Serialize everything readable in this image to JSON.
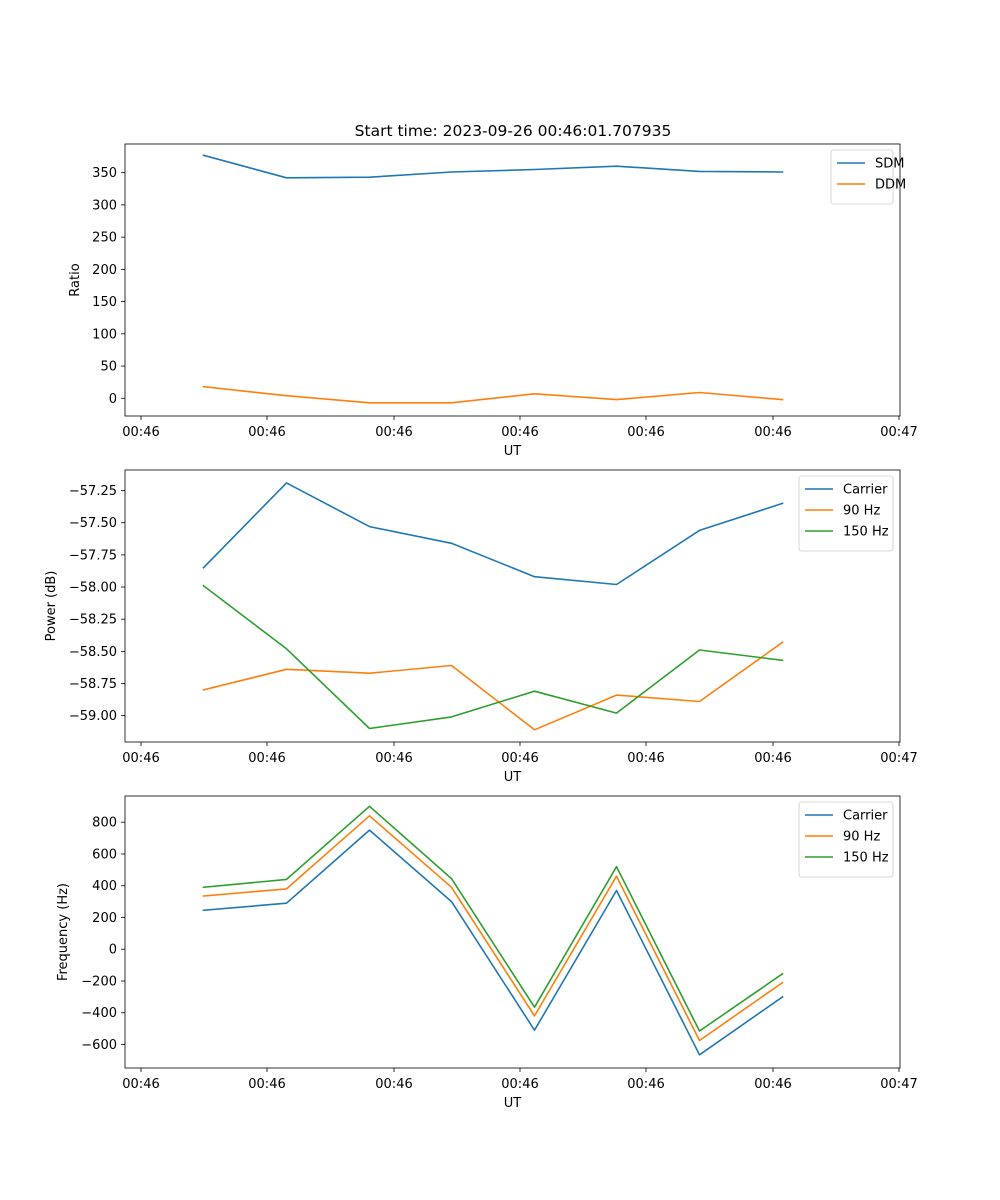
{
  "figure": {
    "title": "Start time: 2023-09-26 00:46:01.707935"
  },
  "chart_data": [
    {
      "type": "line",
      "title": "Start time: 2023-09-26 00:46:01.707935",
      "xlabel": "UT",
      "ylabel": "Ratio",
      "x_tick_labels": [
        "00:46",
        "00:46",
        "00:46",
        "00:46",
        "00:46",
        "00:46",
        "00:46",
        "00:47"
      ],
      "ylim": [
        -27.5,
        394.5
      ],
      "yticks": [
        0,
        50,
        100,
        150,
        200,
        250,
        300,
        350
      ],
      "legend": "top-right",
      "series": [
        {
          "name": "SDM",
          "color": "#1f77b4",
          "values": [
            377,
            342,
            343,
            351,
            355,
            360,
            352,
            351
          ]
        },
        {
          "name": "DDM",
          "color": "#ff7f0e",
          "values": [
            18,
            4,
            -7,
            -7,
            7,
            -2,
            9,
            -2
          ]
        }
      ]
    },
    {
      "type": "line",
      "xlabel": "UT",
      "ylabel": "Power (dB)",
      "x_tick_labels": [
        "00:46",
        "00:46",
        "00:46",
        "00:46",
        "00:46",
        "00:46",
        "00:46",
        "00:47"
      ],
      "ylim": [
        -59.205,
        -57.09
      ],
      "yticks": [
        -59.0,
        -58.75,
        -58.5,
        -58.25,
        -58.0,
        -57.75,
        -57.5,
        -57.25
      ],
      "legend": "top-right",
      "series": [
        {
          "name": "Carrier",
          "color": "#1f77b4",
          "values": [
            -57.85,
            -57.19,
            -57.53,
            -57.66,
            -57.92,
            -57.98,
            -57.56,
            -57.35
          ]
        },
        {
          "name": "90 Hz",
          "color": "#ff7f0e",
          "values": [
            -58.8,
            -58.64,
            -58.67,
            -58.61,
            -59.11,
            -58.84,
            -58.89,
            -58.43
          ]
        },
        {
          "name": "150 Hz",
          "color": "#2ca02c",
          "values": [
            -57.99,
            -58.48,
            -59.1,
            -59.01,
            -58.81,
            -58.98,
            -58.49,
            -58.57
          ]
        }
      ]
    },
    {
      "type": "line",
      "xlabel": "UT",
      "ylabel": "Frequency (Hz)",
      "x_tick_labels": [
        "00:46",
        "00:46",
        "00:46",
        "00:46",
        "00:46",
        "00:46",
        "00:46",
        "00:47"
      ],
      "ylim": [
        -748,
        965
      ],
      "yticks": [
        -600,
        -400,
        -200,
        0,
        200,
        400,
        600,
        800
      ],
      "legend": "top-right",
      "series": [
        {
          "name": "Carrier",
          "color": "#1f77b4",
          "values": [
            245,
            290,
            750,
            300,
            -510,
            370,
            -665,
            -300
          ]
        },
        {
          "name": "90 Hz",
          "color": "#ff7f0e",
          "values": [
            335,
            380,
            840,
            390,
            -420,
            460,
            -575,
            -210
          ]
        },
        {
          "name": "150 Hz",
          "color": "#2ca02c",
          "values": [
            390,
            440,
            900,
            445,
            -365,
            520,
            -515,
            -155
          ]
        }
      ]
    }
  ]
}
